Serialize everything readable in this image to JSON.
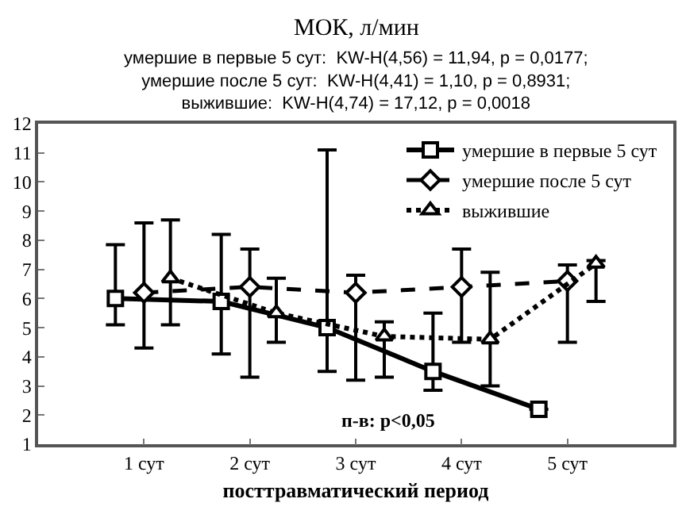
{
  "chart_data": {
    "type": "line",
    "title": "МОК, л/мин",
    "subtitle": "умершие в первые 5 сут:  KW-H(4,56) = 11,94, p = 0,0177;\nумершие после 5 сут:  KW-H(4,41) = 1,10, p = 0,8931;\nвыжившие:  KW-H(4,74) = 17,12, p = 0,0018",
    "xlabel": "посттравматический период",
    "xlim": [
      0,
      6
    ],
    "xticks": [
      {
        "value": 1,
        "label": "1 сут"
      },
      {
        "value": 2,
        "label": "2 сут"
      },
      {
        "value": 3,
        "label": "3 сут"
      },
      {
        "value": 4,
        "label": "4 сут"
      },
      {
        "value": 5,
        "label": "5 сут"
      }
    ],
    "ylim": [
      1,
      12
    ],
    "yticks": [
      1,
      2,
      3,
      4,
      5,
      6,
      7,
      8,
      9,
      10,
      11,
      12
    ],
    "grid": false,
    "legend": "top right",
    "annotations": [
      "п-в: p<0,05"
    ],
    "series": [
      {
        "name": "умершие в первые 5 сут",
        "color": "#000000",
        "marker": "square",
        "line_style": "solid",
        "x": [
          0.73,
          1.73,
          2.73,
          3.73,
          4.73
        ],
        "values": [
          6.0,
          5.9,
          5.0,
          3.5,
          2.2
        ],
        "errors": [
          [
            5.1,
            7.85
          ],
          [
            4.1,
            8.2
          ],
          [
            3.5,
            11.1
          ],
          [
            2.85,
            5.5
          ],
          null
        ]
      },
      {
        "name": "умершие после 5 сут",
        "color": "#000000",
        "marker": "diamond",
        "line_style": "dashed",
        "x": [
          1,
          2,
          3,
          4,
          5
        ],
        "values": [
          6.2,
          6.4,
          6.2,
          6.4,
          6.6
        ],
        "errors": [
          [
            4.3,
            8.6
          ],
          [
            3.3,
            7.7
          ],
          [
            3.2,
            6.8
          ],
          [
            4.5,
            7.7
          ],
          [
            4.5,
            7.15
          ]
        ]
      },
      {
        "name": "выжившие",
        "color": "#000000",
        "marker": "triangle",
        "line_style": "dotted",
        "x": [
          1.25,
          2.25,
          3.27,
          4.27,
          5.27
        ],
        "values": [
          6.7,
          5.5,
          4.7,
          4.6,
          7.2
        ],
        "errors": [
          [
            5.1,
            8.7
          ],
          [
            4.5,
            6.7
          ],
          [
            3.3,
            5.2
          ],
          [
            3.0,
            6.9
          ],
          [
            5.9,
            7.3
          ]
        ]
      }
    ]
  }
}
